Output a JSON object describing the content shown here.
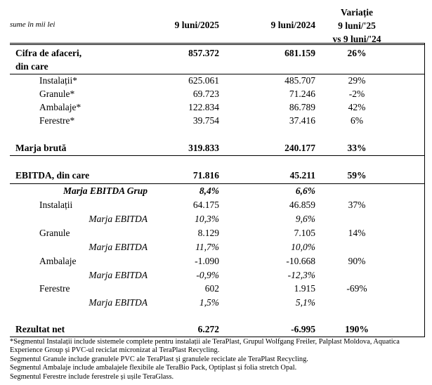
{
  "header": {
    "units": "sume în mii lei",
    "col1": "9 luni/2025",
    "col2": "9 luni/2024",
    "col3_lines": [
      "Variație",
      "9 luni/'25",
      "vs 9 luni/'24"
    ]
  },
  "rows": {
    "cifra": {
      "label": "Cifra de afaceri,",
      "label2": "din care",
      "v1": "857.372",
      "v2": "681.159",
      "v3": "26%"
    },
    "ca_instalatii": {
      "label": "Instalații*",
      "v1": "625.061",
      "v2": "485.707",
      "v3": "29%"
    },
    "ca_granule": {
      "label": "Granule*",
      "v1": "69.723",
      "v2": "71.246",
      "v3": "-2%"
    },
    "ca_ambalaje": {
      "label": "Ambalaje*",
      "v1": "122.834",
      "v2": "86.789",
      "v3": "42%"
    },
    "ca_ferestre": {
      "label": "Ferestre*",
      "v1": "39.754",
      "v2": "37.416",
      "v3": "6%"
    },
    "marja_bruta": {
      "label": "Marja brută",
      "v1": "319.833",
      "v2": "240.177",
      "v3": "33%"
    },
    "ebitda": {
      "label": "EBITDA, din care",
      "v1": "71.816",
      "v2": "45.211",
      "v3": "59%"
    },
    "marja_grup": {
      "label": "Marja EBITDA Grup",
      "v1": "8,4%",
      "v2": "6,6%"
    },
    "eb_instalatii": {
      "label": "Instalații",
      "v1": "64.175",
      "v2": "46.859",
      "v3": "37%"
    },
    "m_instalatii": {
      "label": "Marja EBITDA",
      "v1": "10,3%",
      "v2": "9,6%"
    },
    "eb_granule": {
      "label": "Granule",
      "v1": "8.129",
      "v2": "7.105",
      "v3": "14%"
    },
    "m_granule": {
      "label": "Marja EBITDA",
      "v1": "11,7%",
      "v2": "10,0%"
    },
    "eb_ambalaje": {
      "label": "Ambalaje",
      "v1": "-1.090",
      "v2": "-10.668",
      "v3": "90%"
    },
    "m_ambalaje": {
      "label": "Marja EBITDA",
      "v1": "-0,9%",
      "v2": "-12,3%"
    },
    "eb_ferestre": {
      "label": "Ferestre",
      "v1": "602",
      "v2": "1.915",
      "v3": "-69%"
    },
    "m_ferestre": {
      "label": "Marja EBITDA",
      "v1": "1,5%",
      "v2": "5,1%"
    },
    "rezultat": {
      "label": "Rezultat net",
      "v1": "6.272",
      "v2": "-6.995",
      "v3": "190%"
    }
  },
  "notes": [
    "*Segmentul Instalații include sistemele complete pentru instalații ale TeraPlast, Grupul Wolfgang Freiler, Palplast Moldova, Aquatica Experience Group și PVC-ul reciclat micronizat al TeraPlast Recycling.",
    "Segmentul Granule include granulele PVC ale TeraPlast și granulele reciclate ale TeraPlast Recycling.",
    "Segmentul Ambalaje include ambalajele flexibile ale TeraBio Pack, Optiplast și folia stretch Opal.",
    "Segmentul Ferestre include ferestrele și ușile TeraGlass."
  ]
}
